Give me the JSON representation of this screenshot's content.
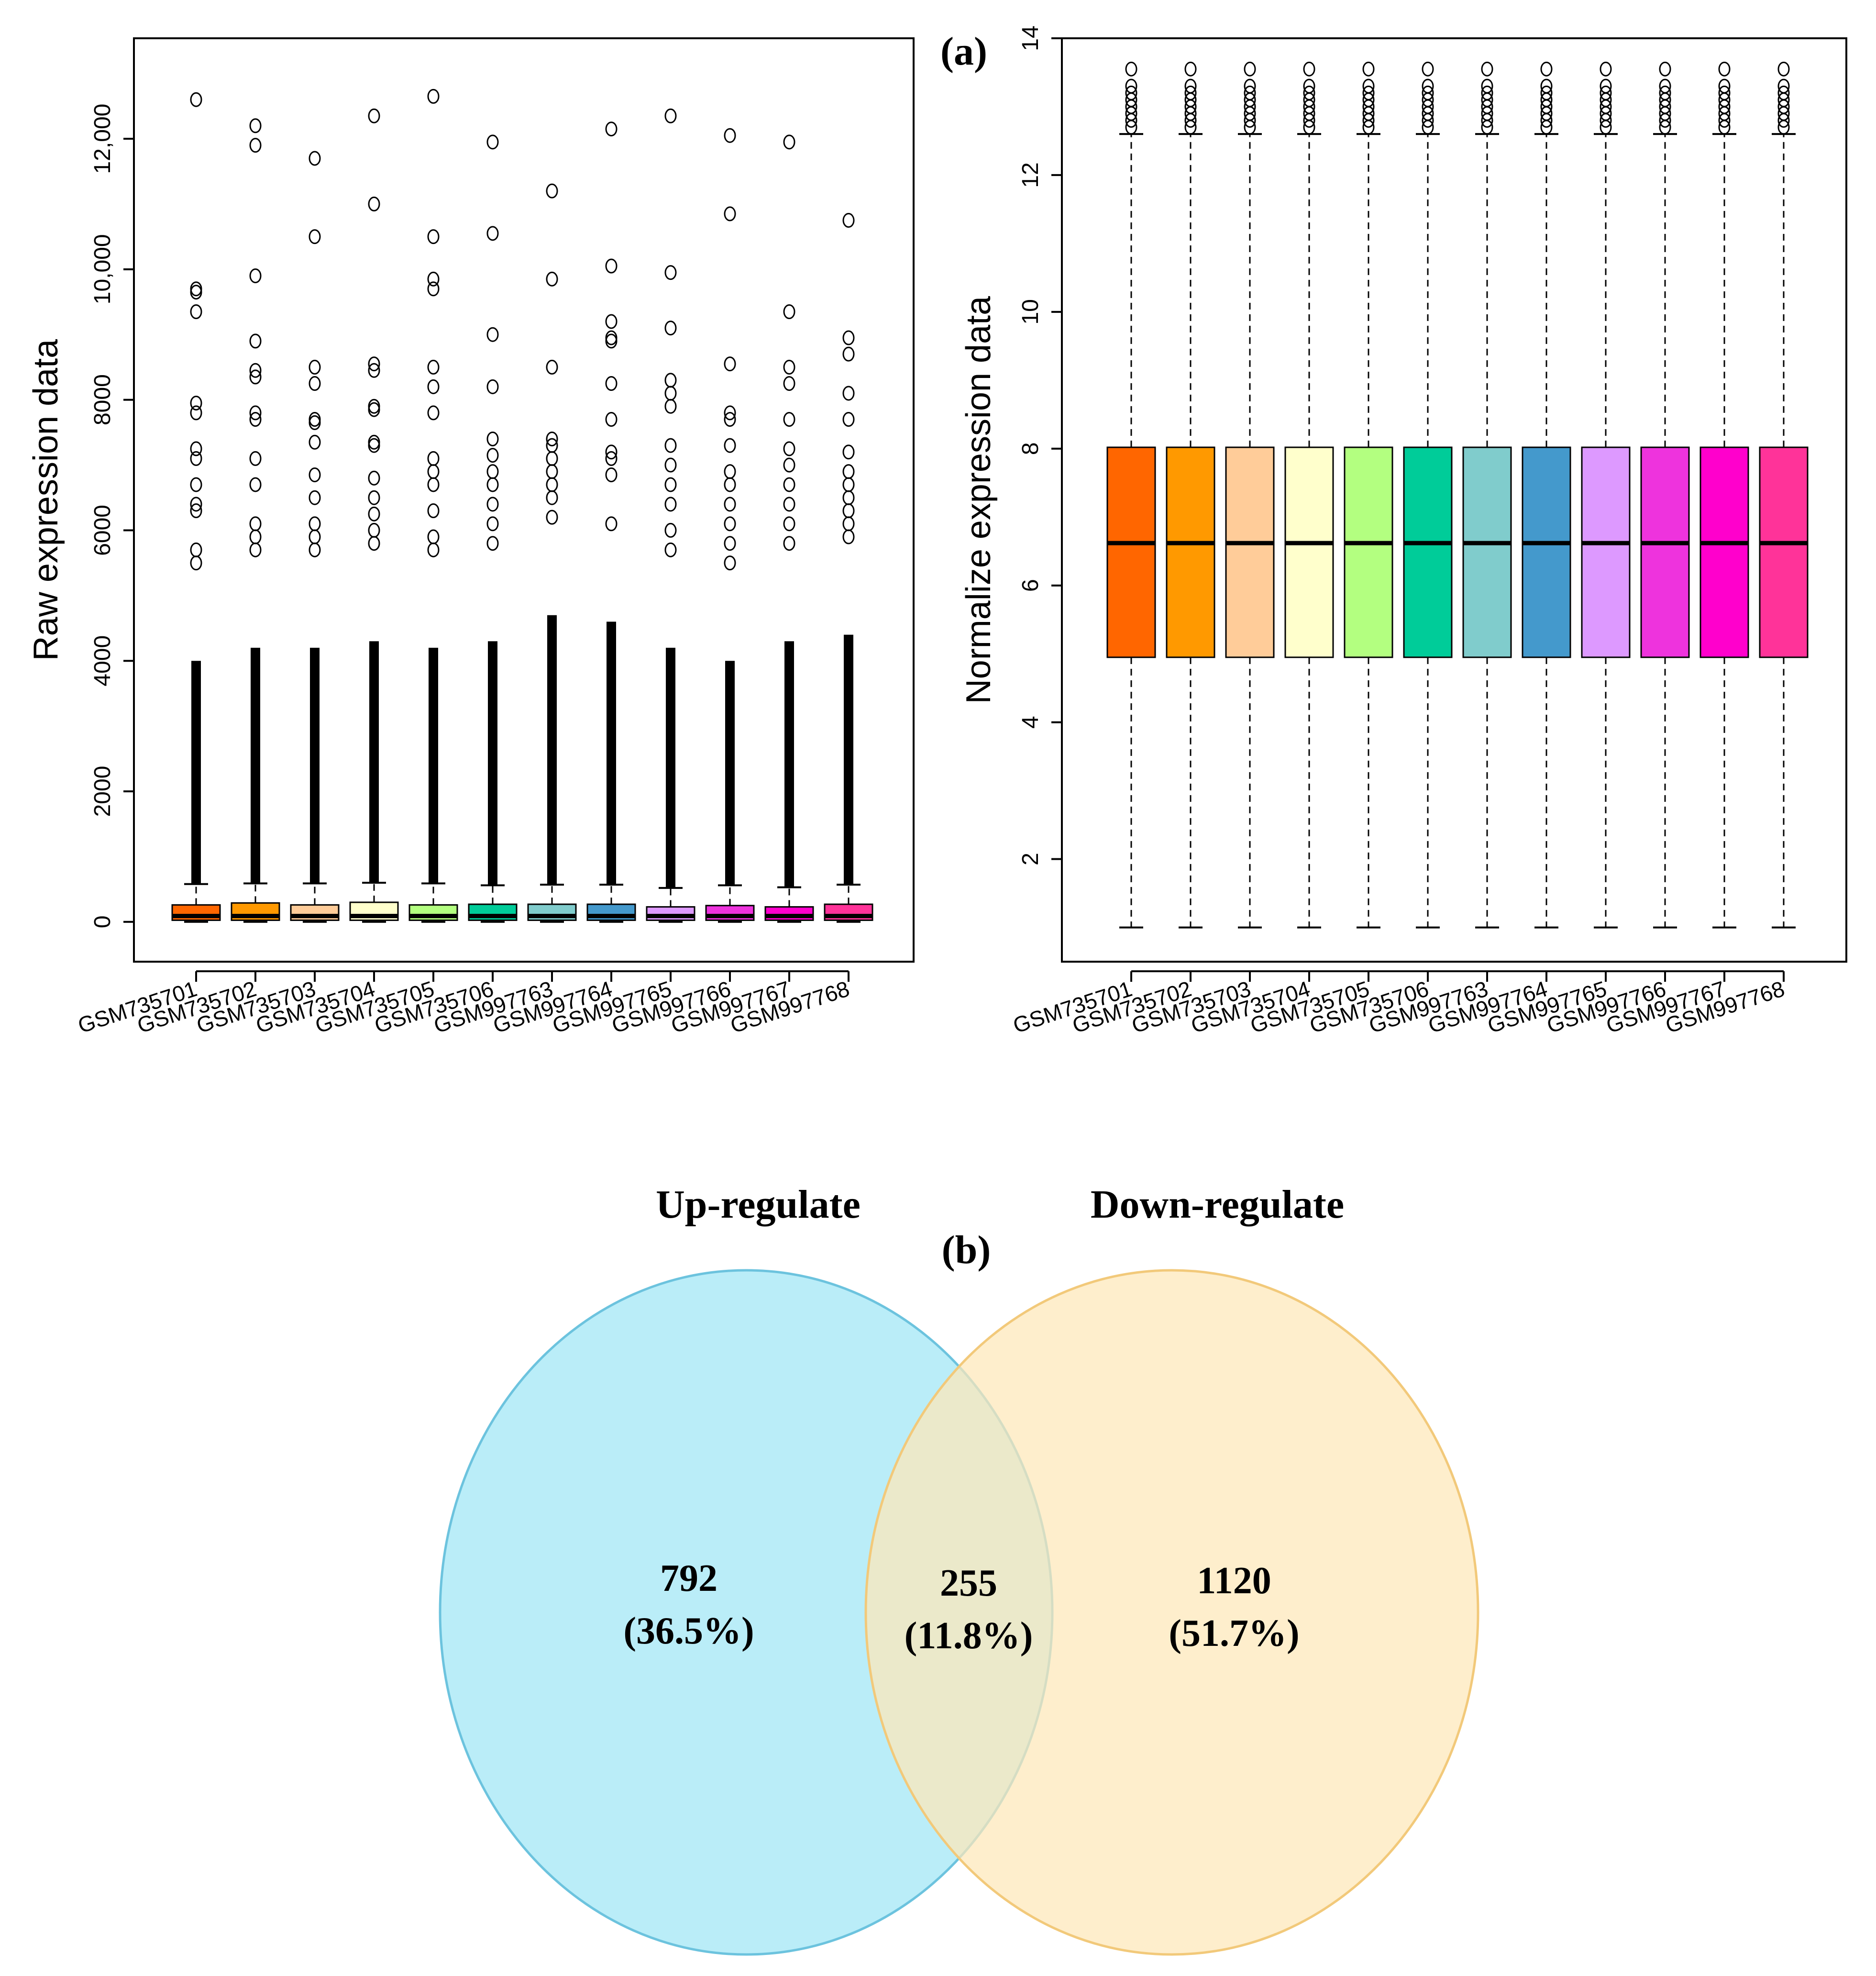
{
  "chart_data": [
    {
      "type": "boxplot",
      "ylabel": "Raw expression data",
      "ylim": [
        -500,
        13100
      ],
      "yticks": [
        0,
        2000,
        4000,
        6000,
        8000,
        10000,
        12000
      ],
      "ytick_labels": [
        "0",
        "2000",
        "4000",
        "6000",
        "8000",
        "10,000",
        "12,000"
      ],
      "categories": [
        "GSM735701",
        "GSM735702",
        "GSM735703",
        "GSM735704",
        "GSM735705",
        "GSM735706",
        "GSM997763",
        "GSM997764",
        "GSM997765",
        "GSM997766",
        "GSM997767",
        "GSM997768"
      ],
      "colors": [
        "#ff6600",
        "#ff9900",
        "#ffcc99",
        "#ffffcc",
        "#b3ff80",
        "#00cc99",
        "#80cccc",
        "#4499cc",
        "#dd99ff",
        "#ee33dd",
        "#ff00cc",
        "#ff3399"
      ],
      "boxes": [
        {
          "q1": 25,
          "median": 90,
          "q3": 260,
          "whisker_low": 0,
          "whisker_high": 580,
          "outliers": [
            12600,
            9700,
            9650,
            9350,
            7950,
            7800,
            7250,
            7100,
            6700,
            6400,
            6300,
            5700,
            5500
          ]
        },
        {
          "q1": 25,
          "median": 90,
          "q3": 290,
          "whisker_low": 0,
          "whisker_high": 590,
          "outliers": [
            12200,
            11900,
            9900,
            8900,
            8450,
            8350,
            7800,
            7700,
            7100,
            6700,
            6100,
            5900,
            5700
          ]
        },
        {
          "q1": 25,
          "median": 90,
          "q3": 260,
          "whisker_low": 0,
          "whisker_high": 590,
          "outliers": [
            11700,
            10500,
            8500,
            8250,
            7700,
            7650,
            7350,
            6850,
            6500,
            6100,
            5900,
            5700
          ]
        },
        {
          "q1": 25,
          "median": 90,
          "q3": 300,
          "whisker_low": 0,
          "whisker_high": 600,
          "outliers": [
            12350,
            11000,
            8550,
            8450,
            7900,
            7850,
            7350,
            7300,
            6800,
            6500,
            6250,
            6000,
            5800
          ]
        },
        {
          "q1": 25,
          "median": 90,
          "q3": 260,
          "whisker_low": 0,
          "whisker_high": 590,
          "outliers": [
            12650,
            10500,
            9850,
            9700,
            8500,
            8200,
            7800,
            7100,
            6900,
            6700,
            6300,
            5900,
            5700
          ]
        },
        {
          "q1": 25,
          "median": 90,
          "q3": 270,
          "whisker_low": 0,
          "whisker_high": 560,
          "outliers": [
            11950,
            10550,
            9000,
            8200,
            7400,
            7150,
            6900,
            6700,
            6400,
            6100,
            5800
          ]
        },
        {
          "q1": 25,
          "median": 90,
          "q3": 270,
          "whisker_low": 0,
          "whisker_high": 570,
          "outliers": [
            11200,
            9850,
            8500,
            7400,
            7300,
            7100,
            6900,
            6700,
            6500,
            6200
          ]
        },
        {
          "q1": 25,
          "median": 90,
          "q3": 270,
          "whisker_low": 0,
          "whisker_high": 570,
          "outliers": [
            12150,
            10050,
            9200,
            8950,
            8900,
            8250,
            7700,
            7200,
            7100,
            6850,
            6100
          ]
        },
        {
          "q1": 25,
          "median": 90,
          "q3": 230,
          "whisker_low": 0,
          "whisker_high": 520,
          "outliers": [
            12350,
            9950,
            9100,
            8300,
            8100,
            7900,
            7300,
            7000,
            6700,
            6400,
            6000,
            5700
          ]
        },
        {
          "q1": 25,
          "median": 90,
          "q3": 250,
          "whisker_low": 0,
          "whisker_high": 560,
          "outliers": [
            12050,
            10850,
            8550,
            7800,
            7700,
            7300,
            6900,
            6700,
            6400,
            6100,
            5800,
            5500
          ]
        },
        {
          "q1": 25,
          "median": 90,
          "q3": 230,
          "whisker_low": 0,
          "whisker_high": 530,
          "outliers": [
            11950,
            9350,
            8500,
            8250,
            7700,
            7250,
            7000,
            6700,
            6400,
            6100,
            5800
          ]
        },
        {
          "q1": 25,
          "median": 90,
          "q3": 270,
          "whisker_low": 0,
          "whisker_high": 570,
          "outliers": [
            10750,
            8950,
            8700,
            8100,
            7700,
            7200,
            6900,
            6700,
            6500,
            6300,
            6100,
            5900
          ]
        }
      ]
    },
    {
      "type": "boxplot",
      "panel_label": "(a)",
      "ylabel": "Normalize expression data",
      "ylim": [
        0.5,
        14
      ],
      "yticks": [
        2,
        4,
        6,
        8,
        10,
        12,
        14
      ],
      "ytick_labels": [
        "2",
        "4",
        "6",
        "8",
        "10",
        "12",
        "14"
      ],
      "categories": [
        "GSM735701",
        "GSM735702",
        "GSM735703",
        "GSM735704",
        "GSM735705",
        "GSM735706",
        "GSM997763",
        "GSM997764",
        "GSM997765",
        "GSM997766",
        "GSM997767",
        "GSM997768"
      ],
      "colors": [
        "#ff6600",
        "#ff9900",
        "#ffcc99",
        "#ffffcc",
        "#b3ff80",
        "#00cc99",
        "#80cccc",
        "#4499cc",
        "#dd99ff",
        "#ee33dd",
        "#ff00cc",
        "#ff3399"
      ],
      "boxes": {
        "q1": 4.95,
        "median": 6.62,
        "q3": 8.02,
        "whisker_low": 1.0,
        "whisker_high": 12.6,
        "outliers": [
          12.7,
          12.8,
          12.9,
          13.0,
          13.1,
          13.2,
          13.3,
          13.55
        ]
      }
    },
    {
      "type": "venn",
      "panel_label": "(b)",
      "sets": [
        {
          "name": "Up-regulate",
          "color": "#aeeaf7",
          "edge": "#6cc3de"
        },
        {
          "name": "Down-regulate",
          "color": "#fde8b8",
          "edge": "#f2c97a"
        }
      ],
      "regions": [
        {
          "region": "Up-regulate only",
          "count": "792",
          "percent": "(36.5%)"
        },
        {
          "region": "Both",
          "count": "255",
          "percent": "(11.8%)"
        },
        {
          "region": "Down-regulate only",
          "count": "1120",
          "percent": "(51.7%)"
        }
      ]
    }
  ]
}
